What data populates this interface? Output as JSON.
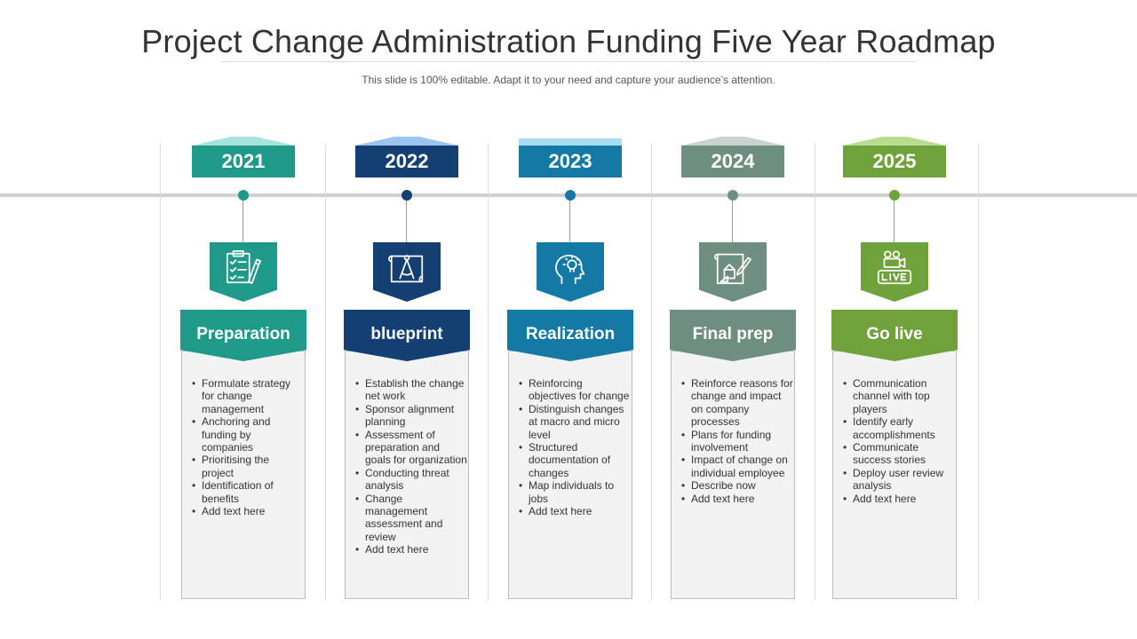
{
  "title": "Project Change Administration Funding Five Year Roadmap",
  "subtitle": "This slide is 100% editable. Adapt it to your need and capture your audience’s attention.",
  "columns": [
    {
      "year": "2021",
      "phase": "Preparation",
      "icon": "checklist-clipboard-icon",
      "color": "#1f9a8a",
      "cap_color": "#a6e3dc",
      "bullets": [
        "Formulate strategy for change management",
        "Anchoring and funding by companies",
        "Prioritising the project",
        "Identification of benefits",
        "Add text here"
      ]
    },
    {
      "year": "2022",
      "phase": "blueprint",
      "icon": "blueprint-compass-icon",
      "color": "#133f73",
      "cap_color": "#9cc4ef",
      "bullets": [
        "Establish the change net work",
        "Sponsor alignment planning",
        "Assessment of preparation and goals for organization",
        "Conducting threat analysis",
        "Change management assessment and review",
        "Add text here"
      ]
    },
    {
      "year": "2023",
      "phase": "Realization",
      "icon": "head-lightbulb-icon",
      "color": "#1479a5",
      "cap_color": "#a8dcf0",
      "bullets": [
        "Reinforcing objectives for change",
        "Distinguish changes at macro and micro level",
        " Structured documentation of changes",
        "Map individuals to jobs",
        "Add text here"
      ]
    },
    {
      "year": "2024",
      "phase": "Final prep",
      "icon": "blueprint-pencil-icon",
      "color": "#6e8e7f",
      "cap_color": "#c7d3cd",
      "bullets": [
        "Reinforce reasons for change and impact on company processes",
        "Plans for funding involvement",
        "Impact of change on individual employee",
        "Describe now",
        "Add text here"
      ]
    },
    {
      "year": "2025",
      "phase": "Go live",
      "icon": "live-video-icon",
      "color": "#6fa23a",
      "cap_color": "#b8dc8f",
      "bullets": [
        "Communication channel with top players",
        "Identify early accomplishments",
        " Communicate success stories",
        "Deploy user review analysis",
        "Add text here"
      ]
    }
  ]
}
